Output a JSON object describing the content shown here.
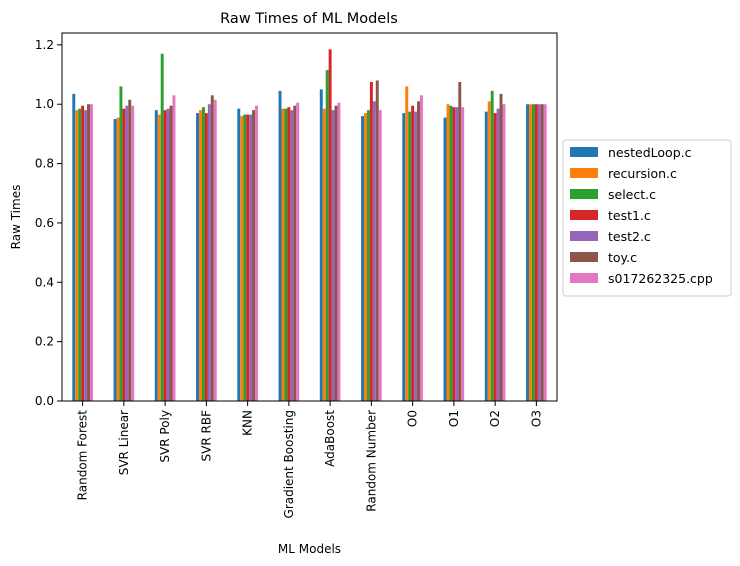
{
  "chart_data": {
    "type": "bar",
    "title": "Raw Times of ML Models",
    "xlabel": "ML Models",
    "ylabel": "Raw Times",
    "ylim": [
      0,
      1.24
    ],
    "yticks": [
      0.0,
      0.2,
      0.4,
      0.6,
      0.8,
      1.0,
      1.2
    ],
    "grid": false,
    "legend_placement": "outside-right",
    "categories": [
      "Random Forest",
      "SVR Linear",
      "SVR Poly",
      "SVR RBF",
      "KNN",
      "Gradient Boosting",
      "AdaBoost",
      "Random Number",
      "O0",
      "O1",
      "O2",
      "O3"
    ],
    "series": [
      {
        "name": "nestedLoop.c",
        "color": "#1f77b4",
        "values": [
          1.035,
          0.95,
          0.98,
          0.97,
          0.985,
          1.045,
          1.05,
          0.96,
          0.97,
          0.955,
          0.975,
          1.0
        ]
      },
      {
        "name": "recursion.c",
        "color": "#ff7f0e",
        "values": [
          0.98,
          0.955,
          0.965,
          0.98,
          0.96,
          0.985,
          0.985,
          0.97,
          1.06,
          1.0,
          1.01,
          1.0
        ]
      },
      {
        "name": "select.c",
        "color": "#2ca02c",
        "values": [
          0.985,
          1.06,
          1.17,
          0.99,
          0.965,
          0.985,
          1.115,
          0.98,
          0.975,
          0.995,
          1.045,
          1.0
        ]
      },
      {
        "name": "test1.c",
        "color": "#d62728",
        "values": [
          0.995,
          0.985,
          0.98,
          0.97,
          0.965,
          0.99,
          1.185,
          1.075,
          0.995,
          0.99,
          0.97,
          1.0
        ]
      },
      {
        "name": "test2.c",
        "color": "#9467bd",
        "values": [
          0.98,
          0.995,
          0.985,
          1.0,
          0.965,
          0.98,
          0.98,
          1.01,
          0.975,
          0.99,
          0.985,
          1.0
        ]
      },
      {
        "name": "toy.c",
        "color": "#8c564b",
        "values": [
          1.0,
          1.015,
          0.995,
          1.03,
          0.98,
          0.995,
          0.995,
          1.08,
          1.01,
          1.075,
          1.035,
          1.0
        ]
      },
      {
        "name": "s017262325.cpp",
        "color": "#e377c2",
        "values": [
          1.0,
          0.995,
          1.03,
          1.015,
          0.995,
          1.005,
          1.005,
          0.98,
          1.03,
          0.99,
          1.0,
          1.0
        ]
      }
    ]
  }
}
